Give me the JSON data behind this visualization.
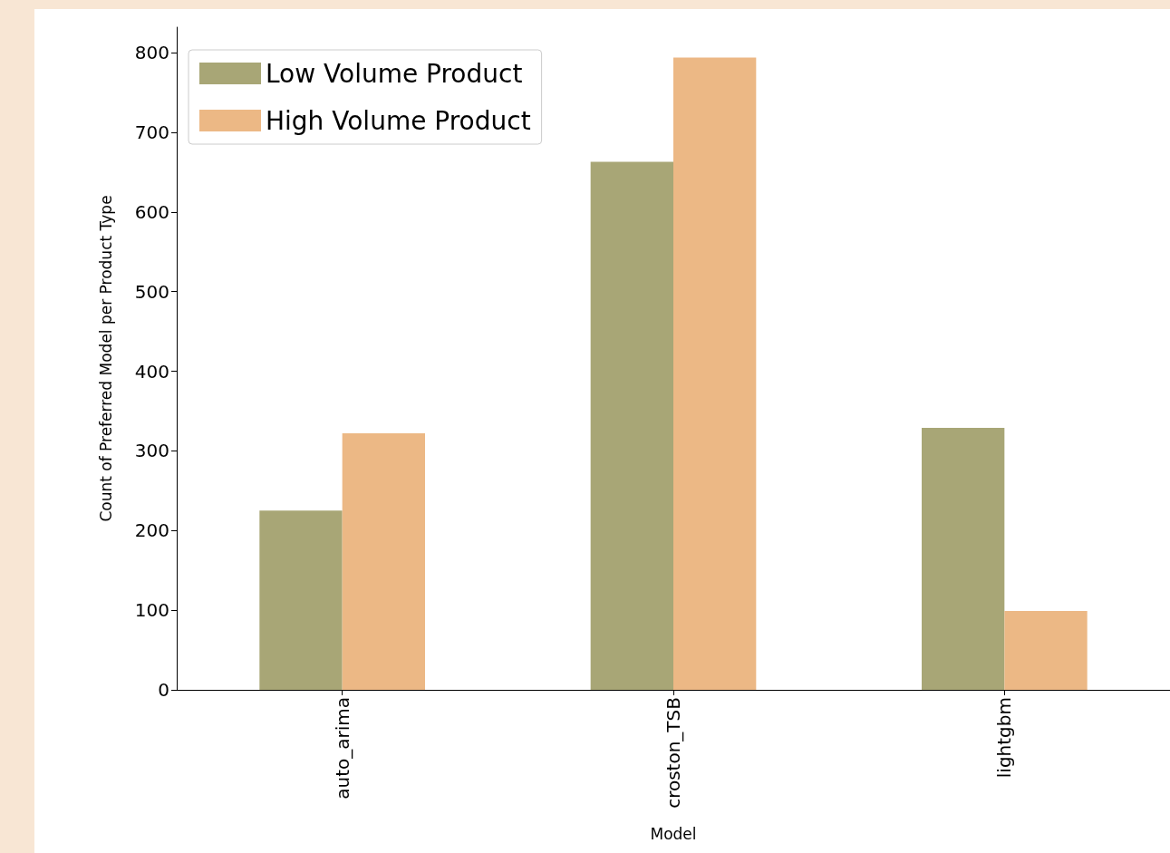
{
  "chart_data": {
    "type": "bar",
    "xlabel": "Model",
    "ylabel": "Count of Preferred Model per Product Type",
    "categories": [
      "auto_arima",
      "croston_TSB",
      "lightgbm"
    ],
    "series": [
      {
        "name": "Low Volume Product",
        "color": "#a8a676",
        "values": [
          225,
          663,
          329
        ]
      },
      {
        "name": "High Volume Product",
        "color": "#ecb885",
        "values": [
          322,
          794,
          99
        ]
      }
    ],
    "ylim": [
      0,
      832
    ],
    "yticks": [
      0,
      100,
      200,
      300,
      400,
      500,
      600,
      700,
      800
    ],
    "grid": false,
    "legend": "top left"
  }
}
